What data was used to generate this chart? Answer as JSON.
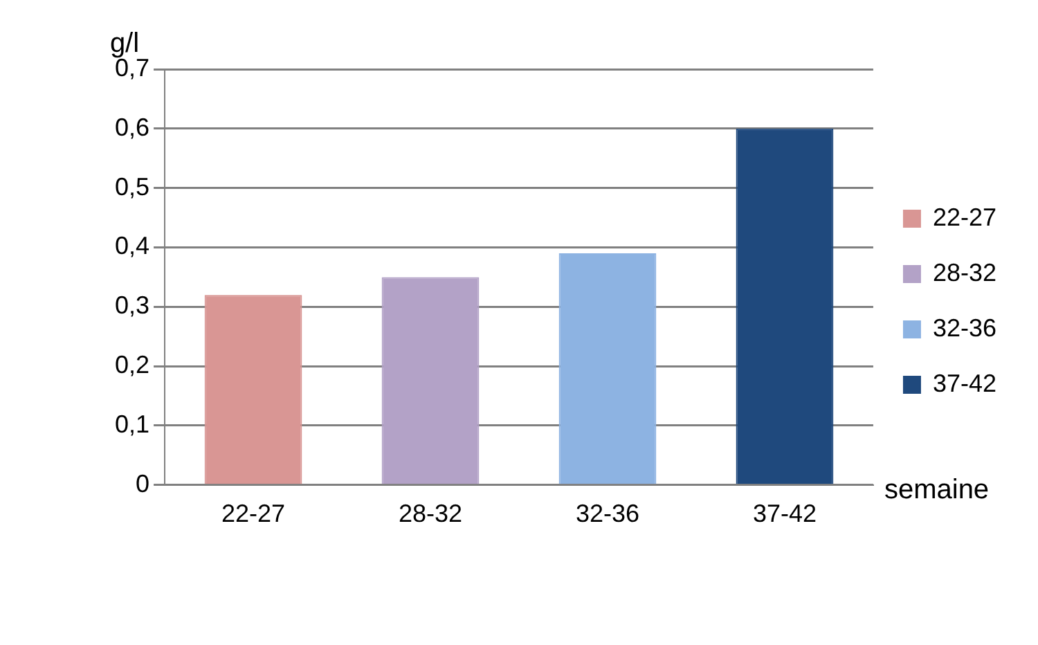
{
  "chart_data": {
    "type": "bar",
    "xlabel": "semaine",
    "ylabel": "g/l",
    "categories": [
      "22-27",
      "28-32",
      "32-36",
      "37-42"
    ],
    "series": [
      {
        "name": "22-27",
        "color": "#d99694",
        "values": [
          0.32,
          null,
          null,
          null
        ]
      },
      {
        "name": "28-32",
        "color": "#b3a2c7",
        "values": [
          null,
          0.35,
          null,
          null
        ]
      },
      {
        "name": "32-36",
        "color": "#8db3e2",
        "values": [
          null,
          null,
          0.39,
          null
        ]
      },
      {
        "name": "37-42",
        "color": "#1f497d",
        "values": [
          null,
          null,
          null,
          0.6
        ]
      }
    ],
    "ylim": [
      0,
      0.7
    ],
    "yticks": [
      {
        "value": 0,
        "label": "0"
      },
      {
        "value": 0.1,
        "label": "0,1"
      },
      {
        "value": 0.2,
        "label": "0,2"
      },
      {
        "value": 0.3,
        "label": "0,3"
      },
      {
        "value": 0.4,
        "label": "0,4"
      },
      {
        "value": 0.5,
        "label": "0,5"
      },
      {
        "value": 0.6,
        "label": "0,6"
      },
      {
        "value": 0.7,
        "label": "0,7"
      }
    ],
    "grid": "y",
    "legend": "right"
  }
}
